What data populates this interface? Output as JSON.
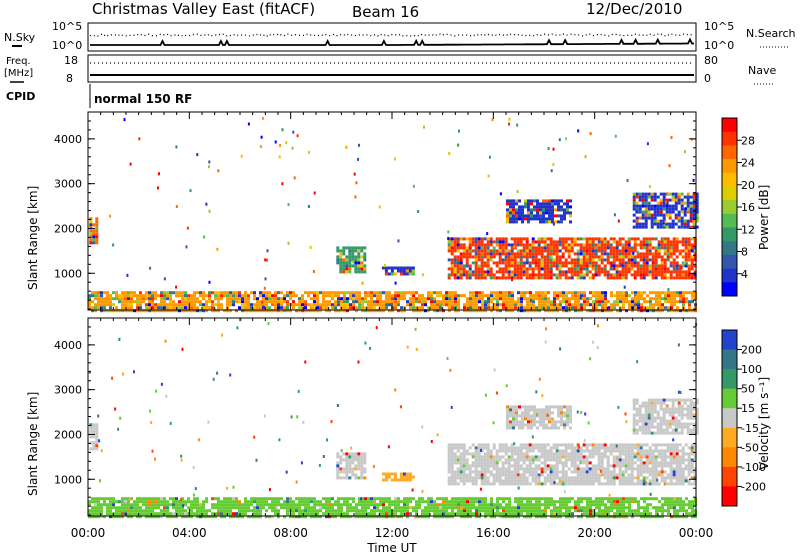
{
  "header": {
    "title": "Christmas Valley East (fitACF)",
    "beam": "Beam 16",
    "date": "12/Dec/2010"
  },
  "top_panels": {
    "sky": {
      "label": "N.Sky",
      "ticks": [
        "10^5",
        "10^0"
      ],
      "right_label": "N.Search",
      "right_ticks": [
        "10^5",
        "10^0"
      ]
    },
    "freq": {
      "label_line1": "Freq.",
      "label_line2": "[MHz]",
      "ticks": [
        "18",
        "8"
      ],
      "right_label": "Nave",
      "right_ticks": [
        "80",
        "0"
      ]
    },
    "cpid": {
      "label": "CPID",
      "value": "normal 150 RF"
    }
  },
  "colorbars": {
    "power": {
      "label": "Power [dB]",
      "ticks": [
        "28",
        "24",
        "20",
        "16",
        "12",
        "8",
        "4"
      ],
      "colors": [
        "#ff0000",
        "#ff3300",
        "#ff6600",
        "#ff9900",
        "#ffbb00",
        "#ddcc00",
        "#99cc33",
        "#55bb55",
        "#339966",
        "#337788",
        "#3355aa",
        "#2233cc",
        "#0000ff"
      ]
    },
    "velocity": {
      "label": "Velocity [m s⁻¹]",
      "ticks": [
        "200",
        "100",
        "50",
        "15",
        "-15",
        "-50",
        "-100",
        "-200"
      ],
      "colors": [
        "#2244cc",
        "#337788",
        "#339966",
        "#66cc33",
        "#c8c8c8",
        "#ffaa22",
        "#ff8800",
        "#ff4400",
        "#ff0000"
      ]
    }
  },
  "chart_data": [
    {
      "type": "heatmap",
      "name": "power",
      "ylabel": "Slant Range [km]",
      "yticks": [
        1000,
        2000,
        3000,
        4000
      ],
      "ylim": [
        180,
        4600
      ],
      "xlim": [
        0,
        24
      ],
      "xticks": [
        "00:00",
        "04:00",
        "08:00",
        "12:00",
        "16:00",
        "20:00",
        "00:00"
      ],
      "regions": [
        {
          "t0": 0.05,
          "t1": 0.35,
          "r0": 1700,
          "r1": 2250,
          "color": "#ff6600"
        },
        {
          "t0": 9.8,
          "t1": 10.9,
          "r0": 1000,
          "r1": 1600,
          "color": "#339966"
        },
        {
          "t0": 11.6,
          "t1": 12.8,
          "r0": 1000,
          "r1": 1150,
          "color": "#2233cc"
        },
        {
          "t0": 14.2,
          "t1": 24.0,
          "r0": 900,
          "r1": 1800,
          "color": "#ff3300"
        },
        {
          "t0": 16.5,
          "t1": 19.0,
          "r0": 2150,
          "r1": 2650,
          "color": "#2233cc"
        },
        {
          "t0": 21.5,
          "t1": 24.0,
          "r0": 2000,
          "r1": 2800,
          "color": "#2233cc"
        },
        {
          "t0": 0.0,
          "t1": 24.0,
          "r0": 180,
          "r1": 600,
          "color": "#ff9900"
        }
      ]
    },
    {
      "type": "heatmap",
      "name": "velocity",
      "ylabel": "Slant Range [km]",
      "xlabel": "Time UT",
      "yticks": [
        1000,
        2000,
        3000,
        4000
      ],
      "ylim": [
        180,
        4600
      ],
      "xlim": [
        0,
        24
      ],
      "xticks": [
        "00:00",
        "04:00",
        "08:00",
        "12:00",
        "16:00",
        "20:00",
        "00:00"
      ],
      "regions": [
        {
          "t0": 0.05,
          "t1": 0.35,
          "r0": 1700,
          "r1": 2250,
          "color": "#c8c8c8"
        },
        {
          "t0": 9.8,
          "t1": 10.9,
          "r0": 1000,
          "r1": 1600,
          "color": "#c8c8c8"
        },
        {
          "t0": 11.6,
          "t1": 12.8,
          "r0": 1000,
          "r1": 1150,
          "color": "#ffaa22"
        },
        {
          "t0": 14.2,
          "t1": 24.0,
          "r0": 900,
          "r1": 1800,
          "color": "#c8c8c8"
        },
        {
          "t0": 16.5,
          "t1": 19.0,
          "r0": 2150,
          "r1": 2650,
          "color": "#c8c8c8"
        },
        {
          "t0": 21.5,
          "t1": 24.0,
          "r0": 2000,
          "r1": 2800,
          "color": "#c8c8c8"
        },
        {
          "t0": 0.0,
          "t1": 24.0,
          "r0": 180,
          "r1": 600,
          "color": "#66cc33"
        }
      ]
    }
  ]
}
